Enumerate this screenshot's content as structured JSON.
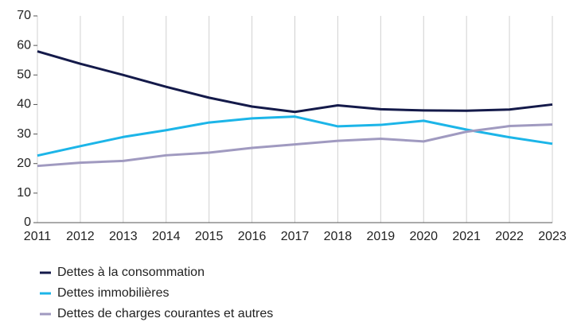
{
  "chart_data": {
    "type": "line",
    "x": [
      2011,
      2012,
      2013,
      2014,
      2015,
      2016,
      2017,
      2018,
      2019,
      2020,
      2021,
      2022,
      2023
    ],
    "xlim": [
      2011,
      2023
    ],
    "xticks": [
      2011,
      2012,
      2013,
      2014,
      2015,
      2016,
      2017,
      2018,
      2019,
      2020,
      2021,
      2022,
      2023
    ],
    "ylim": [
      0,
      70
    ],
    "yticks": [
      0,
      10,
      20,
      30,
      40,
      50,
      60,
      70
    ],
    "grid": true,
    "legend": "bottom",
    "series": [
      {
        "name": "Dettes à la consommation",
        "color": "#141a4a",
        "values": [
          58,
          53.8,
          50,
          46,
          42.3,
          39.3,
          37.5,
          39.7,
          38.4,
          38,
          37.9,
          38.3,
          40
        ]
      },
      {
        "name": "Dettes immobilières",
        "color": "#1cb5e8",
        "values": [
          22.7,
          25.9,
          29,
          31.3,
          33.9,
          35.3,
          35.9,
          32.6,
          33.1,
          34.5,
          31.5,
          28.9,
          26.7
        ]
      },
      {
        "name": "Dettes de charges courantes et autres",
        "color": "#a09ac0",
        "values": [
          19.2,
          20.3,
          20.9,
          22.8,
          23.7,
          25.3,
          26.5,
          27.7,
          28.4,
          27.5,
          30.8,
          32.7,
          33.2
        ]
      }
    ]
  }
}
